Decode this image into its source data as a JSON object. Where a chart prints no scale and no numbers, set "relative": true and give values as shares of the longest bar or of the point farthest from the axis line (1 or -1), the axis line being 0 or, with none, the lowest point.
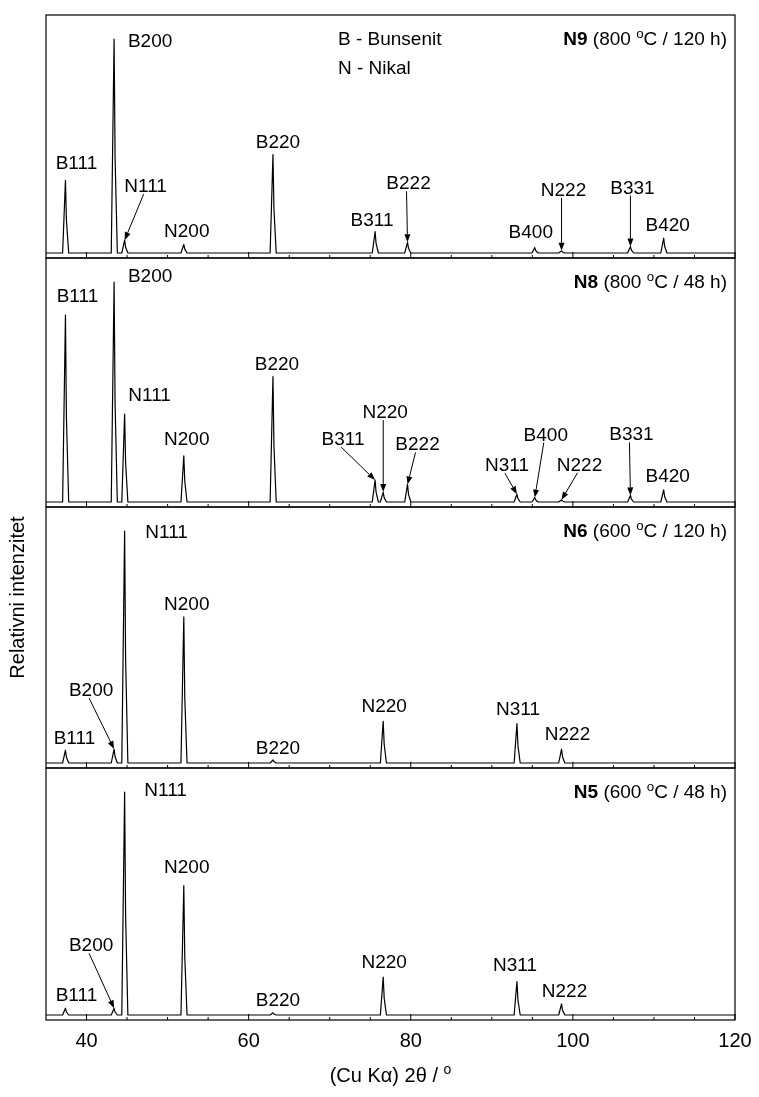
{
  "chart_data": [
    {
      "type": "line",
      "relative": true,
      "title": "N9 (800 $^{o}$C / 120 h)",
      "xlim": [
        35,
        120
      ],
      "xticks": [
        40,
        {
          "value": 45,
          "label": null
        },
        {
          "value": 50,
          "label": null
        },
        {
          "value": 55,
          "label": null
        },
        60,
        {
          "value": 65,
          "label": null
        },
        {
          "value": 70,
          "label": null
        },
        {
          "value": 75,
          "label": null
        },
        80,
        {
          "value": 85,
          "label": null
        },
        {
          "value": 90,
          "label": null
        },
        {
          "value": 95,
          "label": null
        },
        100,
        {
          "value": 105,
          "label": null
        },
        {
          "value": 110,
          "label": null
        },
        {
          "value": 115,
          "label": null
        },
        120
      ],
      "tick_labels": false,
      "series": [
        {
          "color": "#000000",
          "x": [
            35,
            37.05,
            37.4,
            37.52,
            37.8,
            43.05,
            43.4,
            43.52,
            43.8,
            44.35,
            44.7,
            44.82,
            45.1,
            51.65,
            52,
            52.12,
            52.4,
            62.65,
            63,
            63.12,
            63.4,
            75.25,
            75.6,
            75.72,
            76,
            79.25,
            79.6,
            79.72,
            80,
            94.95,
            95.3,
            95.42,
            95.7,
            98.25,
            98.6,
            98.72,
            99,
            106.75,
            107.1,
            107.22,
            107.5,
            110.85,
            111.2,
            111.32,
            111.6,
            120
          ],
          "values": [
            0,
            0,
            0.34,
            0.153,
            0,
            0,
            1,
            0.45,
            0,
            0,
            0.06,
            0.027,
            0,
            0,
            0.04,
            0.018,
            0,
            0,
            0.46,
            0.207,
            0,
            0,
            0.1,
            0.045,
            0,
            0,
            0.05,
            0.0225,
            0,
            0,
            0.025,
            0.011,
            0,
            0,
            0.01,
            0.0045,
            0,
            0,
            0.03,
            0.0135,
            0,
            0,
            0.07,
            0.0315,
            0,
            0
          ]
        }
      ],
      "annotations": [
        "B - Bunsenit",
        "N - Nikal",
        {
          "text": "B111",
          "x": 37.4,
          "y": 0.34
        },
        {
          "text": "B200",
          "x": 43.4,
          "y": 1
        },
        {
          "text": "N111",
          "x": 44.7,
          "y": 0.06
        },
        {
          "text": "N200",
          "x": 52,
          "y": 0.04
        },
        {
          "text": "B220",
          "x": 63,
          "y": 0.46
        },
        {
          "text": "B311",
          "x": 75.6,
          "y": 0.1
        },
        {
          "text": "B222",
          "x": 79.6,
          "y": 0.05
        },
        {
          "text": "B400",
          "x": 95.3,
          "y": 0.025
        },
        {
          "text": "N222",
          "x": 98.6,
          "y": 0.01
        },
        {
          "text": "B331",
          "x": 107.1,
          "y": 0.03
        },
        {
          "text": "B420",
          "x": 111.2,
          "y": 0.07
        }
      ]
    },
    {
      "type": "line",
      "relative": true,
      "title": "N8 (800 $^{o}$C / 48 h)",
      "xlim": [
        35,
        120
      ],
      "xticks": [
        40,
        {
          "value": 45,
          "label": null
        },
        {
          "value": 50,
          "label": null
        },
        {
          "value": 55,
          "label": null
        },
        60,
        {
          "value": 65,
          "label": null
        },
        {
          "value": 70,
          "label": null
        },
        {
          "value": 75,
          "label": null
        },
        80,
        {
          "value": 85,
          "label": null
        },
        {
          "value": 90,
          "label": null
        },
        {
          "value": 95,
          "label": null
        },
        100,
        {
          "value": 105,
          "label": null
        },
        {
          "value": 110,
          "label": null
        },
        {
          "value": 115,
          "label": null
        },
        120
      ],
      "tick_labels": false,
      "series": [
        {
          "color": "#000000",
          "x": [
            35,
            37.05,
            37.4,
            37.52,
            37.8,
            43.05,
            43.4,
            43.52,
            43.8,
            44.35,
            44.7,
            44.82,
            45.1,
            51.65,
            52,
            52.12,
            52.4,
            62.65,
            63,
            63.12,
            63.4,
            75.25,
            75.6,
            75.72,
            76,
            76.25,
            76.6,
            76.72,
            77,
            79.25,
            79.6,
            79.72,
            80,
            92.75,
            93.1,
            93.22,
            93.5,
            94.95,
            95.3,
            95.42,
            95.7,
            98.25,
            98.6,
            98.72,
            99,
            106.75,
            107.1,
            107.22,
            107.5,
            110.85,
            111.2,
            111.32,
            111.6,
            120
          ],
          "values": [
            0,
            0,
            0.85,
            0.3825,
            0,
            0,
            1,
            0.45,
            0,
            0,
            0.4,
            0.18,
            0,
            0,
            0.21,
            0.0945,
            0,
            0,
            0.57,
            0.2565,
            0,
            0,
            0.1,
            0.045,
            0,
            0,
            0.045,
            0.02,
            0,
            0,
            0.08,
            0.036,
            0,
            0,
            0.035,
            0.016,
            0,
            0,
            0.02,
            0.009,
            0,
            0,
            0.01,
            0.0045,
            0,
            0,
            0.03,
            0.0135,
            0,
            0,
            0.055,
            0.025,
            0,
            0
          ]
        }
      ],
      "annotations": [
        {
          "text": "B111",
          "x": 37.4,
          "y": 0.85
        },
        {
          "text": "B200",
          "x": 43.4,
          "y": 1
        },
        {
          "text": "N111",
          "x": 44.7,
          "y": 0.4
        },
        {
          "text": "N200",
          "x": 52,
          "y": 0.21
        },
        {
          "text": "B220",
          "x": 63,
          "y": 0.57
        },
        {
          "text": "B311",
          "x": 75.6,
          "y": 0.1
        },
        {
          "text": "N220",
          "x": 76.6,
          "y": 0.045
        },
        {
          "text": "B222",
          "x": 79.6,
          "y": 0.08
        },
        {
          "text": "N311",
          "x": 93.1,
          "y": 0.035
        },
        {
          "text": "B400",
          "x": 95.3,
          "y": 0.02
        },
        {
          "text": "N222",
          "x": 98.6,
          "y": 0.01
        },
        {
          "text": "B331",
          "x": 107.1,
          "y": 0.03
        },
        {
          "text": "B420",
          "x": 111.2,
          "y": 0.055
        }
      ]
    },
    {
      "type": "line",
      "relative": true,
      "title": "N6 (600 $^{o}$C / 120 h)",
      "ylabel": "Relativni intenzitet",
      "xlim": [
        35,
        120
      ],
      "xticks": [
        40,
        {
          "value": 45,
          "label": null
        },
        {
          "value": 50,
          "label": null
        },
        {
          "value": 55,
          "label": null
        },
        60,
        {
          "value": 65,
          "label": null
        },
        {
          "value": 70,
          "label": null
        },
        {
          "value": 75,
          "label": null
        },
        80,
        {
          "value": 85,
          "label": null
        },
        {
          "value": 90,
          "label": null
        },
        {
          "value": 95,
          "label": null
        },
        100,
        {
          "value": 105,
          "label": null
        },
        {
          "value": 110,
          "label": null
        },
        {
          "value": 115,
          "label": null
        },
        120
      ],
      "tick_labels": false,
      "series": [
        {
          "color": "#000000",
          "x": [
            35,
            37.05,
            37.4,
            37.52,
            37.8,
            43.05,
            43.4,
            43.52,
            43.8,
            44.35,
            44.7,
            44.82,
            45.1,
            51.65,
            52,
            52.12,
            52.4,
            62.65,
            63,
            63.12,
            63.4,
            76.25,
            76.6,
            76.72,
            77,
            92.75,
            93.1,
            93.22,
            93.5,
            98.25,
            98.6,
            98.72,
            99,
            120
          ],
          "values": [
            0,
            0,
            0.055,
            0.025,
            0,
            0,
            0.06,
            0.027,
            0,
            0,
            1,
            0.45,
            0,
            0,
            0.63,
            0.28,
            0,
            0,
            0.013,
            0.006,
            0,
            0,
            0.18,
            0.081,
            0,
            0,
            0.17,
            0.076,
            0,
            0,
            0.06,
            0.027,
            0,
            0
          ]
        }
      ],
      "annotations": [
        {
          "text": "B111",
          "x": 37.4,
          "y": 0.055
        },
        {
          "text": "B200",
          "x": 43.4,
          "y": 0.06
        },
        {
          "text": "N111",
          "x": 44.7,
          "y": 1
        },
        {
          "text": "N200",
          "x": 52,
          "y": 0.63
        },
        {
          "text": "B220",
          "x": 63,
          "y": 0.013
        },
        {
          "text": "N220",
          "x": 76.6,
          "y": 0.18
        },
        {
          "text": "N311",
          "x": 93.1,
          "y": 0.17
        },
        {
          "text": "N222",
          "x": 98.6,
          "y": 0.06
        }
      ]
    },
    {
      "type": "line",
      "relative": true,
      "title": "N5 (600 $^{o}$C / 48 h)",
      "xlabel": "(Cu Kα) 2θ / $^{o}$",
      "xlim": [
        35,
        120
      ],
      "xticks": [
        40,
        {
          "value": 45,
          "label": null
        },
        {
          "value": 50,
          "label": null
        },
        {
          "value": 55,
          "label": null
        },
        60,
        {
          "value": 65,
          "label": null
        },
        {
          "value": 70,
          "label": null
        },
        {
          "value": 75,
          "label": null
        },
        80,
        {
          "value": 85,
          "label": null
        },
        {
          "value": 90,
          "label": null
        },
        {
          "value": 95,
          "label": null
        },
        100,
        {
          "value": 105,
          "label": null
        },
        {
          "value": 110,
          "label": null
        },
        {
          "value": 115,
          "label": null
        },
        120
      ],
      "series": [
        {
          "color": "#000000",
          "x": [
            35,
            37.05,
            37.4,
            37.52,
            37.8,
            43.05,
            43.4,
            43.52,
            43.8,
            44.35,
            44.7,
            44.82,
            45.1,
            51.65,
            52,
            52.12,
            52.4,
            62.65,
            63,
            63.12,
            63.4,
            76.25,
            76.6,
            76.72,
            77,
            92.75,
            93.1,
            93.22,
            93.5,
            98.25,
            98.6,
            98.72,
            99,
            120
          ],
          "values": [
            0,
            0,
            0.03,
            0.0135,
            0,
            0,
            0.03,
            0.0135,
            0,
            0,
            1,
            0.45,
            0,
            0,
            0.58,
            0.26,
            0,
            0,
            0.01,
            0.0045,
            0,
            0,
            0.17,
            0.076,
            0,
            0,
            0.15,
            0.068,
            0,
            0,
            0.05,
            0.0225,
            0,
            0
          ]
        }
      ],
      "annotations": [
        {
          "text": "B111",
          "x": 37.4,
          "y": 0.03
        },
        {
          "text": "B200",
          "x": 43.4,
          "y": 0.03
        },
        {
          "text": "N111",
          "x": 44.7,
          "y": 1
        },
        {
          "text": "N200",
          "x": 52,
          "y": 0.58
        },
        {
          "text": "B220",
          "x": 63,
          "y": 0.01
        },
        {
          "text": "N220",
          "x": 76.6,
          "y": 0.17
        },
        {
          "text": "N311",
          "x": 93.1,
          "y": 0.15
        },
        {
          "text": "N222",
          "x": 98.6,
          "y": 0.05
        }
      ]
    }
  ]
}
